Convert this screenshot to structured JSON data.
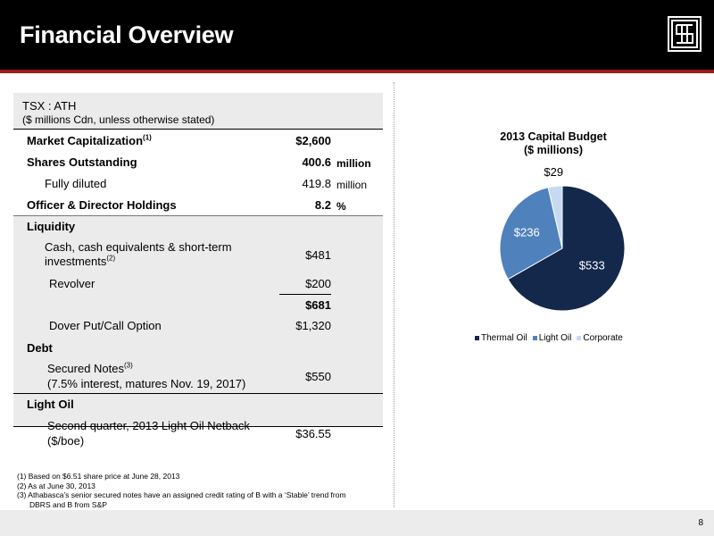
{
  "header": {
    "title": "Financial Overview"
  },
  "table": {
    "header_line1": "TSX : ATH",
    "header_line2": "($ millions Cdn, unless otherwise stated)",
    "rows": {
      "market_cap": {
        "label": "Market Capitalization",
        "sup": "(1)",
        "value": "$2,600"
      },
      "shares_outstanding": {
        "label": "Shares Outstanding",
        "value": "400.6",
        "unit": "million"
      },
      "fully_diluted": {
        "label": "Fully diluted",
        "value": "419.8",
        "unit": "million"
      },
      "officer_holdings": {
        "label": "Officer & Director Holdings",
        "value": "8.2",
        "unit": "%"
      },
      "liquidity": {
        "label": "Liquidity"
      },
      "cash_line1": "Cash, cash equivalents & short-term",
      "cash_line2": "investments",
      "cash_sup": "(2)",
      "cash_value": "$481",
      "revolver": {
        "label": "Revolver",
        "value": "$200"
      },
      "liquidity_total": {
        "value": "$681"
      },
      "dover": {
        "label": "Dover Put/Call Option",
        "value": "$1,320"
      },
      "debt": {
        "label": "Debt"
      },
      "secured_line1": "Secured Notes",
      "secured_sup": "(3)",
      "secured_line2": "(7.5% interest, matures Nov. 19, 2017)",
      "secured_value": "$550",
      "light_oil": {
        "label": "Light Oil"
      },
      "netback_line1": "Second quarter, 2013 Light Oil Netback",
      "netback_line2": "($/boe)",
      "netback_value": "$36.55"
    }
  },
  "footnotes": [
    "(1) Based on $6.51 share price at June 28, 2013",
    "(2) As at June 30, 2013",
    "(3) Athabasca’s senior secured notes have an assigned credit rating of B with a ‘Stable’ trend from",
    "DBRS and B from S&P"
  ],
  "page_number": "8",
  "chart_data": {
    "type": "pie",
    "title_line1": "2013 Capital Budget",
    "title_line2": "($ millions)",
    "categories": [
      "Thermal Oil",
      "Light Oil",
      "Corporate"
    ],
    "values": [
      533,
      236,
      29
    ],
    "data_labels": [
      "$533",
      "$236",
      "$29"
    ],
    "colors": [
      "#14284b",
      "#4f81bd",
      "#c6d9f1"
    ],
    "legend_position": "bottom"
  }
}
